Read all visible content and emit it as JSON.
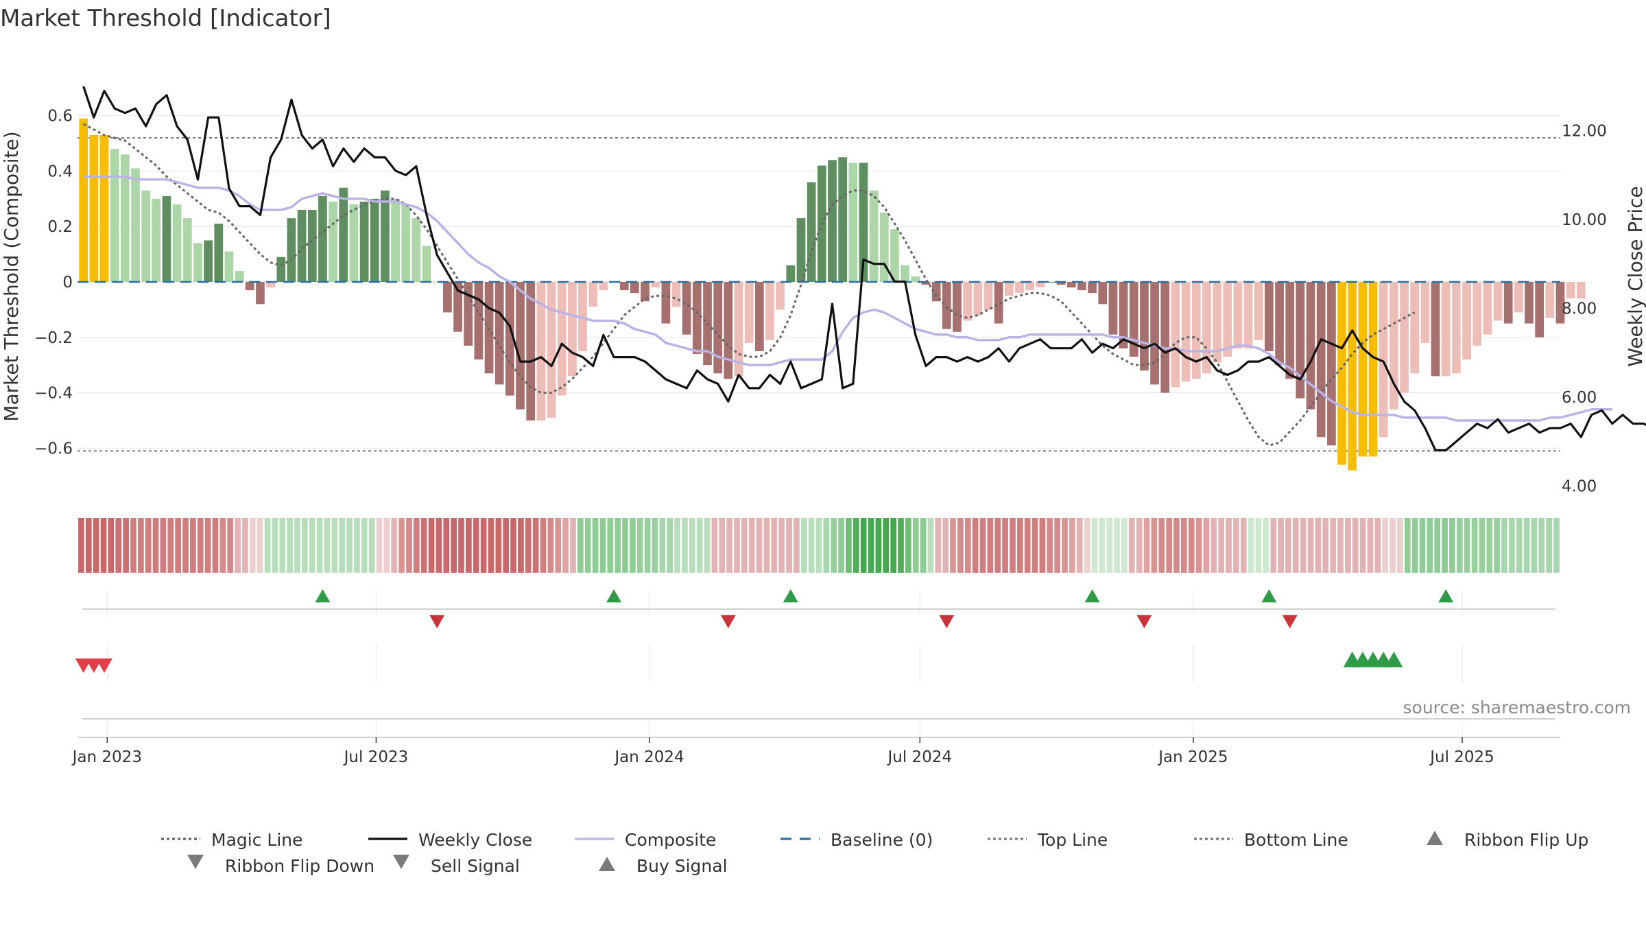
{
  "chart_data": {
    "type": "bar",
    "title": "Market Threshold [Indicator]",
    "ylabel": "Market Threshold (Composite)",
    "y2label": "Weekly Close Price",
    "ylim": [
      -0.76,
      0.77
    ],
    "y2lim": [
      3.85,
      13.4
    ],
    "yticks": [
      0.6,
      0.4,
      0.2,
      0,
      -0.2,
      -0.4,
      -0.6
    ],
    "ytick_labels": [
      "0.6",
      "0.4",
      "0.2",
      "0",
      "−0.2",
      "−0.4",
      "−0.6"
    ],
    "y2ticks": [
      12,
      10,
      8,
      6,
      4
    ],
    "y2tick_labels": [
      "12.00",
      "10.00",
      "8.00",
      "6.00",
      "4.00"
    ],
    "xdomain": [
      "2022-12-12",
      "2025-09-05"
    ],
    "xticks": [
      "2023-01-01",
      "2023-07-01",
      "2024-01-01",
      "2024-07-01",
      "2025-01-01",
      "2025-07-01"
    ],
    "xtick_labels": [
      "Jan 2023",
      "Jul 2023",
      "Jan 2024",
      "Jul 2024",
      "Jan 2025",
      "Jul 2025"
    ],
    "start_date": "2022-12-16",
    "frequency": "weekly",
    "top_line": 0.52,
    "bottom_line": -0.61,
    "baseline": 0,
    "composite_bars": [
      0.59,
      0.53,
      0.53,
      0.48,
      0.46,
      0.41,
      0.33,
      0.3,
      0.31,
      0.28,
      0.23,
      0.14,
      0.15,
      0.21,
      0.11,
      0.04,
      -0.03,
      -0.08,
      -0.02,
      0.09,
      0.23,
      0.26,
      0.26,
      0.31,
      0.29,
      0.34,
      0.28,
      0.29,
      0.3,
      0.33,
      0.3,
      0.28,
      0.23,
      0.13,
      0.0,
      -0.11,
      -0.18,
      -0.23,
      -0.28,
      -0.33,
      -0.37,
      -0.41,
      -0.46,
      -0.5,
      -0.5,
      -0.49,
      -0.41,
      -0.34,
      -0.25,
      -0.09,
      -0.03,
      0.0,
      -0.03,
      -0.04,
      -0.07,
      -0.02,
      -0.15,
      -0.09,
      -0.19,
      -0.26,
      -0.3,
      -0.33,
      -0.35,
      -0.34,
      -0.22,
      -0.25,
      -0.21,
      -0.1,
      0.06,
      0.23,
      0.36,
      0.42,
      0.44,
      0.45,
      0.43,
      0.43,
      0.33,
      0.25,
      0.19,
      0.06,
      0.02,
      -0.01,
      -0.07,
      -0.17,
      -0.18,
      -0.14,
      -0.12,
      -0.1,
      -0.15,
      -0.05,
      -0.04,
      -0.03,
      -0.02,
      0.0,
      -0.01,
      -0.02,
      -0.03,
      -0.04,
      -0.08,
      -0.19,
      -0.24,
      -0.27,
      -0.32,
      -0.37,
      -0.4,
      -0.38,
      -0.36,
      -0.35,
      -0.33,
      -0.29,
      -0.27,
      -0.24,
      -0.24,
      -0.21,
      -0.25,
      -0.3,
      -0.35,
      -0.42,
      -0.46,
      -0.56,
      -0.59,
      -0.66,
      -0.68,
      -0.63,
      -0.63,
      -0.56,
      -0.46,
      -0.4,
      -0.33,
      -0.22,
      -0.34,
      -0.34,
      -0.33,
      -0.28,
      -0.23,
      -0.19,
      -0.14,
      -0.15,
      -0.11,
      -0.15,
      -0.2,
      -0.13,
      -0.15,
      -0.06,
      -0.06
    ],
    "weekly_close": [
      13.0,
      12.3,
      12.9,
      12.5,
      12.4,
      12.5,
      12.1,
      12.6,
      12.8,
      12.1,
      11.8,
      10.9,
      12.3,
      12.3,
      10.7,
      10.3,
      10.3,
      10.1,
      11.4,
      11.8,
      12.7,
      11.9,
      11.6,
      11.8,
      11.2,
      11.6,
      11.3,
      11.6,
      11.4,
      11.4,
      11.1,
      11.0,
      11.2,
      10.1,
      9.2,
      8.8,
      8.4,
      8.3,
      8.2,
      8.0,
      7.9,
      7.6,
      6.8,
      6.8,
      6.9,
      6.7,
      7.2,
      7.0,
      6.9,
      6.7,
      7.4,
      6.9,
      6.9,
      6.9,
      6.8,
      6.6,
      6.4,
      6.3,
      6.2,
      6.6,
      6.4,
      6.3,
      5.9,
      6.5,
      6.2,
      6.2,
      6.5,
      6.3,
      6.8,
      6.2,
      6.3,
      6.4,
      8.1,
      6.2,
      6.3,
      9.1,
      9.0,
      9.0,
      8.6,
      8.6,
      7.4,
      6.7,
      6.9,
      6.9,
      6.8,
      6.9,
      6.8,
      6.9,
      7.1,
      6.8,
      7.1,
      7.2,
      7.3,
      7.1,
      7.1,
      7.1,
      7.3,
      7.0,
      7.2,
      7.1,
      7.3,
      7.2,
      7.1,
      7.2,
      7.0,
      7.1,
      6.9,
      6.8,
      6.9,
      6.6,
      6.5,
      6.6,
      6.8,
      6.8,
      6.9,
      6.7,
      6.5,
      6.4,
      6.8,
      7.3,
      7.2,
      7.1,
      7.5,
      7.1,
      6.9,
      6.8,
      6.3,
      5.9,
      5.7,
      5.3,
      4.8,
      4.8,
      5.0,
      5.2,
      5.4,
      5.3,
      5.5,
      5.2,
      5.3,
      5.4,
      5.2,
      5.3,
      5.3,
      5.4,
      5.1,
      5.6,
      5.7,
      5.4,
      5.6,
      5.4,
      5.4,
      5.3,
      5.5,
      5.4,
      5.5,
      5.4,
      5.7,
      5.6,
      5.5,
      5.4,
      5.3,
      5.5,
      5.6,
      5.8,
      5.9,
      5.8
    ],
    "composite_line": [
      0.38,
      0.38,
      0.38,
      0.38,
      0.38,
      0.37,
      0.37,
      0.37,
      0.37,
      0.36,
      0.35,
      0.34,
      0.34,
      0.34,
      0.33,
      0.31,
      0.28,
      0.26,
      0.26,
      0.26,
      0.27,
      0.3,
      0.31,
      0.32,
      0.31,
      0.3,
      0.3,
      0.3,
      0.29,
      0.29,
      0.29,
      0.28,
      0.27,
      0.25,
      0.22,
      0.18,
      0.14,
      0.1,
      0.07,
      0.05,
      0.02,
      0.0,
      -0.03,
      -0.06,
      -0.08,
      -0.1,
      -0.11,
      -0.12,
      -0.13,
      -0.14,
      -0.14,
      -0.14,
      -0.15,
      -0.17,
      -0.18,
      -0.19,
      -0.22,
      -0.23,
      -0.24,
      -0.25,
      -0.25,
      -0.27,
      -0.28,
      -0.29,
      -0.3,
      -0.3,
      -0.3,
      -0.29,
      -0.28,
      -0.28,
      -0.28,
      -0.28,
      -0.25,
      -0.18,
      -0.13,
      -0.11,
      -0.1,
      -0.11,
      -0.13,
      -0.15,
      -0.17,
      -0.18,
      -0.19,
      -0.19,
      -0.2,
      -0.2,
      -0.21,
      -0.21,
      -0.21,
      -0.2,
      -0.2,
      -0.19,
      -0.19,
      -0.19,
      -0.19,
      -0.19,
      -0.19,
      -0.19,
      -0.19,
      -0.2,
      -0.2,
      -0.21,
      -0.22,
      -0.23,
      -0.24,
      -0.24,
      -0.25,
      -0.25,
      -0.25,
      -0.25,
      -0.24,
      -0.23,
      -0.23,
      -0.24,
      -0.26,
      -0.29,
      -0.31,
      -0.34,
      -0.37,
      -0.4,
      -0.43,
      -0.45,
      -0.47,
      -0.48,
      -0.48,
      -0.48,
      -0.48,
      -0.49,
      -0.49,
      -0.49,
      -0.49,
      -0.49,
      -0.5,
      -0.5,
      -0.5,
      -0.5,
      -0.5,
      -0.5,
      -0.5,
      -0.5,
      -0.5,
      -0.49,
      -0.49,
      -0.48,
      -0.47,
      -0.46,
      -0.46,
      -0.46
    ],
    "magic_line": [
      0.57,
      0.55,
      0.53,
      0.52,
      0.51,
      0.48,
      0.45,
      0.42,
      0.38,
      0.35,
      0.32,
      0.29,
      0.26,
      0.25,
      0.22,
      0.18,
      0.14,
      0.1,
      0.07,
      0.06,
      0.08,
      0.12,
      0.15,
      0.18,
      0.21,
      0.24,
      0.26,
      0.28,
      0.29,
      0.3,
      0.3,
      0.28,
      0.24,
      0.19,
      0.13,
      0.07,
      0.01,
      -0.05,
      -0.11,
      -0.17,
      -0.23,
      -0.29,
      -0.34,
      -0.38,
      -0.4,
      -0.4,
      -0.38,
      -0.35,
      -0.31,
      -0.27,
      -0.22,
      -0.17,
      -0.12,
      -0.09,
      -0.06,
      -0.05,
      -0.05,
      -0.06,
      -0.08,
      -0.11,
      -0.15,
      -0.19,
      -0.23,
      -0.26,
      -0.27,
      -0.27,
      -0.25,
      -0.2,
      -0.12,
      -0.01,
      0.11,
      0.21,
      0.28,
      0.31,
      0.33,
      0.33,
      0.31,
      0.27,
      0.21,
      0.15,
      0.08,
      0.01,
      -0.05,
      -0.09,
      -0.12,
      -0.13,
      -0.12,
      -0.1,
      -0.08,
      -0.06,
      -0.05,
      -0.04,
      -0.04,
      -0.05,
      -0.07,
      -0.11,
      -0.15,
      -0.19,
      -0.23,
      -0.26,
      -0.28,
      -0.3,
      -0.3,
      -0.29,
      -0.26,
      -0.22,
      -0.2,
      -0.2,
      -0.24,
      -0.29,
      -0.36,
      -0.43,
      -0.5,
      -0.56,
      -0.59,
      -0.58,
      -0.54,
      -0.5,
      -0.45,
      -0.4,
      -0.35,
      -0.31,
      -0.26,
      -0.22,
      -0.19,
      -0.17,
      -0.15,
      -0.13,
      -0.11
    ],
    "ribbon_colors": [
      "#c9686b",
      "#c9686b",
      "#c9686b",
      "#c9686b",
      "#c9686b",
      "#cc7274",
      "#cc7274",
      "#d07d7f",
      "#d07d7f",
      "#d07d7f",
      "#d07d7f",
      "#d07d7f",
      "#d07d7f",
      "#d07d7f",
      "#d07d7f",
      "#d07d7f",
      "#d07d7f",
      "#d07d7f",
      "#d07d7f",
      "#d48a8b",
      "#d48a8b",
      "#e2b3b3",
      "#e2b3b3",
      "#ead0cf",
      "#ead0cf",
      "#b8ddba",
      "#b8ddba",
      "#b8ddba",
      "#b8ddba",
      "#b8ddba",
      "#b8ddba",
      "#b8ddba",
      "#b8ddba",
      "#b8ddba",
      "#b8ddba",
      "#b8ddba",
      "#b8ddba",
      "#b8ddba",
      "#b8ddba",
      "#b8ddba",
      "#eacfce",
      "#eacfce",
      "#e2b4b3",
      "#d89393",
      "#d48a8b",
      "#d07d7f",
      "#cc7274",
      "#c9686b",
      "#c9686b",
      "#c9686b",
      "#c9686b",
      "#c9686b",
      "#c9686b",
      "#c9686b",
      "#c9686b",
      "#c9686b",
      "#c9686b",
      "#c9686b",
      "#c9686b",
      "#c9686b",
      "#cc7274",
      "#cc7274",
      "#d07d7f",
      "#d48a8b",
      "#d89393",
      "#dda2a1",
      "#e2b3b3",
      "#8fcb95",
      "#8fcb95",
      "#8fcb95",
      "#8fcb95",
      "#8fcb95",
      "#8fcb95",
      "#8fcb95",
      "#8fcb95",
      "#99cf9e",
      "#99cf9e",
      "#99cf9e",
      "#a8d6ac",
      "#a8d6ac",
      "#b8ddba",
      "#b8ddba",
      "#b8ddba",
      "#b8ddba",
      "#b8ddba",
      "#e2b3b3",
      "#e2b3b3",
      "#e2b3b3",
      "#e2b3b3",
      "#e2b3b3",
      "#e2b3b3",
      "#e2b3b3",
      "#e2b3b3",
      "#e2b3b3",
      "#e2b3b3",
      "#e2b3b3",
      "#e2b3b3",
      "#b8ddba",
      "#b8ddba",
      "#b8ddba",
      "#a8d6ac",
      "#99cf9e",
      "#8fcb95",
      "#6fbd77",
      "#52ad5b",
      "#45a84f",
      "#45a84f",
      "#45a84f",
      "#45a84f",
      "#45a84f",
      "#52ad5b",
      "#6fbd77",
      "#8fcb95",
      "#8fcb95",
      "#b8ddba",
      "#e2b3b3",
      "#e2b3b3",
      "#d89393",
      "#d48a8b",
      "#d48a8b",
      "#d07d7f",
      "#d07d7f",
      "#d07d7f",
      "#d07d7f",
      "#d07d7f",
      "#d07d7f",
      "#d07d7f",
      "#d07d7f",
      "#d07d7f",
      "#d07d7f",
      "#d48a8b",
      "#d48a8b",
      "#d89393",
      "#dda2a1",
      "#e2b3b3",
      "#ead0cf",
      "#cfe8d0",
      "#cfe8d0",
      "#cfe8d0",
      "#cfe8d0",
      "#cfe8d0",
      "#e2b3b3",
      "#e2b3b3",
      "#dda2a1",
      "#d89393",
      "#d48a8b",
      "#d48a8b",
      "#d48a8b",
      "#d48a8b",
      "#d48a8b",
      "#d89393",
      "#dda2a1",
      "#e2b3b3",
      "#e2b3b3",
      "#e2b3b3",
      "#e2b3b3",
      "#e2b3b3",
      "#cfe8d0",
      "#cfe8d0",
      "#cfe8d0",
      "#e2b3b3",
      "#e2b3b3",
      "#e2b3b3",
      "#e2b3b3",
      "#e2b3b3",
      "#e2b3b3",
      "#e2b3b3",
      "#e2b3b3",
      "#e2b3b3",
      "#e2b3b3",
      "#e2b3b3",
      "#e2b3b3",
      "#e2b3b3",
      "#e2b3b3",
      "#e2b3b3",
      "#ead0cf",
      "#ead0cf",
      "#ead0cf",
      "#8fcb95",
      "#8fcb95",
      "#8fcb95",
      "#8fcb95",
      "#8fcb95",
      "#8fcb95",
      "#8fcb95",
      "#99cf9e",
      "#99cf9e",
      "#99cf9e",
      "#99cf9e",
      "#99cf9e",
      "#99cf9e",
      "#a8d6ac",
      "#a8d6ac",
      "#a8d6ac",
      "#a8d6ac",
      "#a8d6ac",
      "#a8d6ac",
      "#a8d6ac",
      "#a8d6ac"
    ],
    "ribbon_flip_up": [
      "2023-05-26",
      "2023-12-08",
      "2024-04-05",
      "2024-10-25",
      "2025-02-21",
      "2025-06-20"
    ],
    "ribbon_flip_down": [
      "2023-08-11",
      "2024-02-23",
      "2024-07-19",
      "2024-11-29",
      "2025-03-07"
    ],
    "sell_signal": [
      "2022-12-16",
      "2022-12-23",
      "2022-12-30"
    ],
    "buy_signal": [
      "2025-04-18",
      "2025-04-25",
      "2025-05-02",
      "2025-05-09",
      "2025-05-16"
    ],
    "colors": {
      "extreme": "#f7bd00",
      "pos_strong": "#5f8e60",
      "pos_light": "#acd6a8",
      "neg_strong": "#a6706e",
      "neg_light": "#edbdb8",
      "weekly_close": "#111111",
      "composite": "#bab3e6",
      "magic_line": "#666666",
      "baseline": "#2d6fa3",
      "threshold_line": "#7a7a7a",
      "flip_up": "#2f9a48",
      "flip_down": "#c8353a",
      "sell": "#e0404a",
      "buy": "#2f9a48",
      "grid": "#e9e9e9"
    },
    "legend": [
      {
        "key": "magic_line",
        "label": "Magic Line",
        "symbol": "dotted"
      },
      {
        "key": "weekly_close",
        "label": "Weekly Close",
        "symbol": "solid"
      },
      {
        "key": "composite",
        "label": "Composite",
        "symbol": "solid"
      },
      {
        "key": "baseline",
        "label": "Baseline (0)",
        "symbol": "dashed"
      },
      {
        "key": "top_line",
        "label": "Top Line",
        "symbol": "dotted"
      },
      {
        "key": "bottom_line",
        "label": "Bottom Line",
        "symbol": "dotted"
      },
      {
        "key": "ribbon_flip_up",
        "label": "Ribbon Flip Up",
        "symbol": "triangle-up"
      },
      {
        "key": "ribbon_flip_down",
        "label": "Ribbon Flip Down",
        "symbol": "triangle-down"
      },
      {
        "key": "sell_signal",
        "label": "Sell Signal",
        "symbol": "triangle-down"
      },
      {
        "key": "buy_signal",
        "label": "Buy Signal",
        "symbol": "triangle-up"
      }
    ],
    "legend_position": "bottom",
    "source": "source: sharemaestro.com"
  }
}
